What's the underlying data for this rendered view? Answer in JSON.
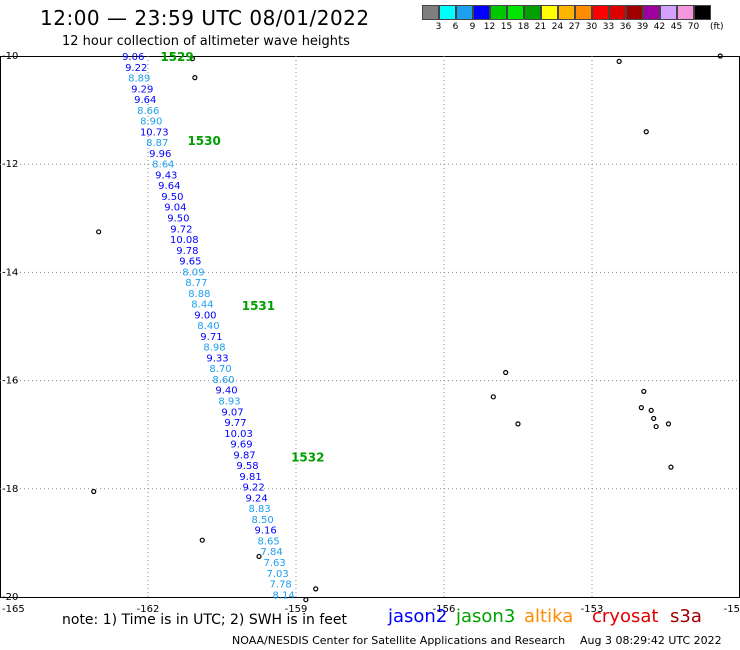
{
  "header": {
    "title": "12:00 — 23:59 UTC 08/01/2022",
    "subtitle": "12 hour collection of altimeter wave heights"
  },
  "color_scale": {
    "labels": [
      "3",
      "6",
      "9",
      "12",
      "15",
      "18",
      "21",
      "24",
      "27",
      "30",
      "33",
      "36",
      "39",
      "42",
      "45",
      "70"
    ],
    "colors": [
      "#7f7f7f",
      "#00ffff",
      "#1ea0f0",
      "#0000ff",
      "#00c800",
      "#00e600",
      "#00a000",
      "#ffff00",
      "#ffb400",
      "#ff8c00",
      "#ff0000",
      "#dc0000",
      "#a00000",
      "#a000a0",
      "#d2a0ff",
      "#f596dc",
      "#000000"
    ],
    "unit": "(ft)"
  },
  "map": {
    "lon_range": [
      -165,
      -150
    ],
    "lat_range": [
      -20,
      -10
    ],
    "x_ticks": [
      "-165",
      "-162",
      "-159",
      "-156",
      "-153",
      "-15"
    ],
    "y_ticks": [
      "-10",
      "-12",
      "-14",
      "-16",
      "-18",
      "-20"
    ]
  },
  "track": {
    "times": [
      {
        "label": "1529",
        "lat": -10.0,
        "lon": -161.75
      },
      {
        "label": "1530",
        "lat": -11.55,
        "lon": -161.2
      },
      {
        "label": "1531",
        "lat": -14.6,
        "lon": -160.1
      },
      {
        "label": "1532",
        "lat": -17.4,
        "lon": -159.1
      }
    ],
    "points": [
      {
        "v": "9.06",
        "c": "#0000ff"
      },
      {
        "v": "9.22",
        "c": "#0000ff"
      },
      {
        "v": "8.89",
        "c": "#1ea0f0"
      },
      {
        "v": "9.29",
        "c": "#0000ff"
      },
      {
        "v": "9.64",
        "c": "#0000ff"
      },
      {
        "v": "8.66",
        "c": "#1ea0f0"
      },
      {
        "v": "8.90",
        "c": "#1ea0f0"
      },
      {
        "v": "10.73",
        "c": "#0000ff"
      },
      {
        "v": "8.87",
        "c": "#1ea0f0"
      },
      {
        "v": "9.96",
        "c": "#0000ff"
      },
      {
        "v": "8.64",
        "c": "#1ea0f0"
      },
      {
        "v": "9.43",
        "c": "#0000ff"
      },
      {
        "v": "9.64",
        "c": "#0000ff"
      },
      {
        "v": "9.50",
        "c": "#0000ff"
      },
      {
        "v": "9.04",
        "c": "#0000ff"
      },
      {
        "v": "9.50",
        "c": "#0000ff"
      },
      {
        "v": "9.72",
        "c": "#0000ff"
      },
      {
        "v": "10.08",
        "c": "#0000ff"
      },
      {
        "v": "9.78",
        "c": "#0000ff"
      },
      {
        "v": "9.65",
        "c": "#0000ff"
      },
      {
        "v": "8.09",
        "c": "#1ea0f0"
      },
      {
        "v": "8.77",
        "c": "#1ea0f0"
      },
      {
        "v": "8.88",
        "c": "#1ea0f0"
      },
      {
        "v": "8.44",
        "c": "#1ea0f0"
      },
      {
        "v": "9.00",
        "c": "#0000ff"
      },
      {
        "v": "8.40",
        "c": "#1ea0f0"
      },
      {
        "v": "9.71",
        "c": "#0000ff"
      },
      {
        "v": "8.98",
        "c": "#1ea0f0"
      },
      {
        "v": "9.33",
        "c": "#0000ff"
      },
      {
        "v": "8.70",
        "c": "#1ea0f0"
      },
      {
        "v": "8.60",
        "c": "#1ea0f0"
      },
      {
        "v": "9.40",
        "c": "#0000ff"
      },
      {
        "v": "8.93",
        "c": "#1ea0f0"
      },
      {
        "v": "9.07",
        "c": "#0000ff"
      },
      {
        "v": "9.77",
        "c": "#0000ff"
      },
      {
        "v": "10.03",
        "c": "#0000ff"
      },
      {
        "v": "9.69",
        "c": "#0000ff"
      },
      {
        "v": "9.87",
        "c": "#0000ff"
      },
      {
        "v": "9.58",
        "c": "#0000ff"
      },
      {
        "v": "9.81",
        "c": "#0000ff"
      },
      {
        "v": "9.22",
        "c": "#0000ff"
      },
      {
        "v": "9.24",
        "c": "#0000ff"
      },
      {
        "v": "8.83",
        "c": "#1ea0f0"
      },
      {
        "v": "8.50",
        "c": "#1ea0f0"
      },
      {
        "v": "9.16",
        "c": "#0000ff"
      },
      {
        "v": "8.65",
        "c": "#1ea0f0"
      },
      {
        "v": "7.84",
        "c": "#1ea0f0"
      },
      {
        "v": "7.63",
        "c": "#1ea0f0"
      },
      {
        "v": "7.03",
        "c": "#1ea0f0"
      },
      {
        "v": "7.78",
        "c": "#1ea0f0"
      },
      {
        "v": "8.14",
        "c": "#1ea0f0"
      }
    ],
    "lat_start": -10.0,
    "lat_end": -19.95,
    "lon_start": -162.3,
    "lon_end": -159.25
  },
  "islands": [
    {
      "lat": -10.05,
      "lon": -161.1
    },
    {
      "lat": -10.4,
      "lon": -161.05
    },
    {
      "lat": -13.25,
      "lon": -163.0
    },
    {
      "lat": -18.05,
      "lon": -163.1
    },
    {
      "lat": -18.95,
      "lon": -160.9
    },
    {
      "lat": -19.25,
      "lon": -159.75
    },
    {
      "lat": -19.85,
      "lon": -158.6
    },
    {
      "lat": -20.05,
      "lon": -158.8
    },
    {
      "lat": -16.3,
      "lon": -155.0
    },
    {
      "lat": -15.85,
      "lon": -154.75
    },
    {
      "lat": -16.8,
      "lon": -154.5
    },
    {
      "lat": -10.1,
      "lon": -152.45
    },
    {
      "lat": -11.4,
      "lon": -151.9
    },
    {
      "lat": -16.5,
      "lon": -152.0
    },
    {
      "lat": -16.2,
      "lon": -151.95
    },
    {
      "lat": -16.55,
      "lon": -151.8
    },
    {
      "lat": -16.7,
      "lon": -151.75
    },
    {
      "lat": -16.85,
      "lon": -151.7
    },
    {
      "lat": -16.8,
      "lon": -151.45
    },
    {
      "lat": -17.6,
      "lon": -151.4
    },
    {
      "lat": -10.0,
      "lon": -150.4
    }
  ],
  "footer": {
    "note": "note: 1) Time is in UTC; 2) SWH is in feet",
    "satellites": [
      {
        "name": "jason2",
        "color": "#0000ff"
      },
      {
        "name": "jason3",
        "color": "#00a000"
      },
      {
        "name": "altika",
        "color": "#ff8c00"
      },
      {
        "name": "cryosat",
        "color": "#e00000"
      },
      {
        "name": "s3a",
        "color": "#a00000"
      }
    ],
    "credit": "NOAA/NESDIS Center for Satellite Applications and Research",
    "timestamp": "Aug  3 08:29:42 UTC 2022"
  }
}
